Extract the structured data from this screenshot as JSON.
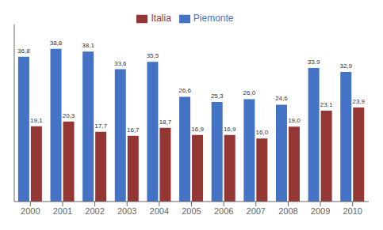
{
  "chart_data": {
    "type": "bar",
    "categories": [
      "2000",
      "2001",
      "2002",
      "2003",
      "2004",
      "2005",
      "2006",
      "2007",
      "2008",
      "2009",
      "2010"
    ],
    "series": [
      {
        "name": "Piemonte",
        "color": "#4472C4",
        "values": [
          36.8,
          38.8,
          38.1,
          33.6,
          35.5,
          26.6,
          25.3,
          26.0,
          24.6,
          33.9,
          32.9
        ],
        "value_labels": [
          "36,8",
          "38,8",
          "38,1",
          "33,6",
          "35,5",
          "26,6",
          "25,3",
          "26,0",
          "24,6",
          "33,9",
          "32,9"
        ]
      },
      {
        "name": "Italia",
        "color": "#943634",
        "values": [
          19.1,
          20.3,
          17.7,
          16.7,
          18.7,
          16.9,
          16.9,
          16.0,
          19.0,
          23.1,
          23.9
        ],
        "value_labels": [
          "19,1",
          "20,3",
          "17,7",
          "16,7",
          "18,7",
          "16,9",
          "16,9",
          "16,0",
          "19,0",
          "23,1",
          "23,9"
        ]
      }
    ],
    "ylim": [
      0,
      45
    ],
    "grid": false,
    "legend": "top",
    "data_labels": true,
    "tick_labels": "x"
  }
}
